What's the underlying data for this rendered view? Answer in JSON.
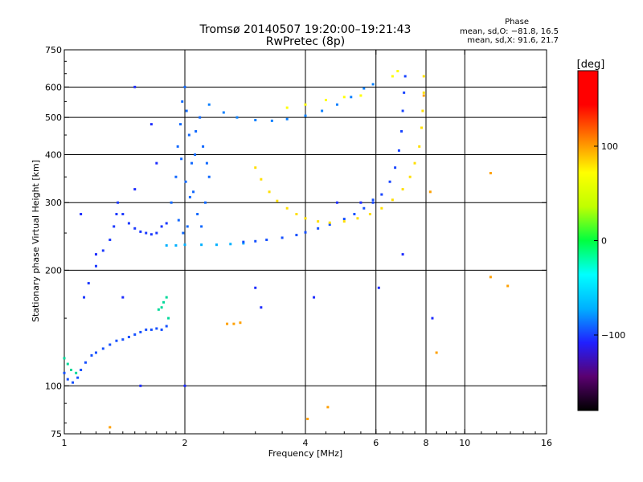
{
  "chart_data": {
    "type": "scatter",
    "title": "Tromsø 20140507 19:20:00–19:21:43",
    "subtitle": "RwPretec (8p)",
    "xlabel": "Frequency [MHz]",
    "ylabel": "Stationary phase Virtual Height [km]",
    "x_scale": "log2",
    "y_scale": "log",
    "xlim": [
      1,
      16
    ],
    "ylim": [
      75,
      750
    ],
    "x_ticks": [
      1,
      2,
      4,
      6,
      8,
      10,
      16
    ],
    "x_tick_labels": [
      "1",
      "2",
      "4",
      "6",
      "8",
      "10",
      "16"
    ],
    "x_grid": [
      2,
      4,
      6,
      8,
      10
    ],
    "y_ticks": [
      75,
      100,
      200,
      300,
      400,
      500,
      600,
      750
    ],
    "y_tick_labels": [
      "75",
      "100",
      "200",
      "300",
      "400",
      "500",
      "600",
      "750"
    ],
    "y_grid": [
      100,
      200,
      300,
      400,
      500,
      600
    ],
    "grid": true,
    "stats": {
      "heading": "Phase",
      "line_o": "mean, sd,O: −81.8, 16.5",
      "line_x": "mean, sd,X:  91.6, 21.7"
    },
    "colorbar": {
      "label": "[deg]",
      "range": [
        -180,
        180
      ],
      "ticks": [
        100,
        0,
        -100
      ],
      "tick_labels": [
        "100",
        "0",
        "−100"
      ],
      "colors": [
        "#000000",
        "#5a0070",
        "#2020ff",
        "#00b0ff",
        "#00ffff",
        "#00ff40",
        "#c0ff00",
        "#ffff00",
        "#ff8000",
        "#ff0000",
        "#ff0000"
      ]
    },
    "series": [
      {
        "trace": "E low",
        "phase": -80,
        "points": [
          [
            1.0,
            108
          ],
          [
            1.02,
            104
          ],
          [
            1.05,
            102
          ],
          [
            1.08,
            105
          ],
          [
            1.1,
            110
          ],
          [
            1.13,
            115
          ],
          [
            1.17,
            120
          ],
          [
            1.2,
            122
          ],
          [
            1.25,
            125
          ],
          [
            1.3,
            128
          ],
          [
            1.35,
            131
          ],
          [
            1.4,
            132
          ],
          [
            1.45,
            134
          ],
          [
            1.5,
            136
          ],
          [
            1.55,
            138
          ],
          [
            1.6,
            140
          ],
          [
            1.65,
            140
          ],
          [
            1.7,
            141
          ],
          [
            1.75,
            140
          ],
          [
            1.8,
            143
          ]
        ]
      },
      {
        "trace": "E low cyan",
        "phase": -10,
        "points": [
          [
            1.0,
            118
          ],
          [
            1.02,
            114
          ],
          [
            1.04,
            110
          ],
          [
            1.07,
            108
          ],
          [
            1.72,
            158
          ],
          [
            1.75,
            160
          ],
          [
            1.77,
            165
          ],
          [
            1.8,
            170
          ],
          [
            1.82,
            150
          ]
        ]
      },
      {
        "trace": "E rising",
        "phase": -90,
        "points": [
          [
            1.12,
            170
          ],
          [
            1.15,
            185
          ],
          [
            1.2,
            205
          ],
          [
            1.25,
            225
          ],
          [
            1.3,
            240
          ],
          [
            1.33,
            260
          ],
          [
            1.35,
            280
          ],
          [
            1.36,
            300
          ],
          [
            1.4,
            280
          ],
          [
            1.45,
            265
          ],
          [
            1.5,
            257
          ],
          [
            1.55,
            252
          ],
          [
            1.6,
            250
          ],
          [
            1.65,
            248
          ],
          [
            1.7,
            250
          ],
          [
            1.75,
            260
          ],
          [
            1.8,
            265
          ]
        ]
      },
      {
        "trace": "F1 base",
        "phase": -40,
        "points": [
          [
            1.8,
            232
          ],
          [
            1.9,
            232
          ],
          [
            2.0,
            233
          ],
          [
            2.2,
            233
          ],
          [
            2.4,
            233
          ],
          [
            2.6,
            234
          ],
          [
            2.8,
            235
          ]
        ]
      },
      {
        "trace": "F1 main",
        "phase": -80,
        "points": [
          [
            2.8,
            237
          ],
          [
            3.0,
            238
          ],
          [
            3.2,
            240
          ],
          [
            3.5,
            243
          ],
          [
            3.8,
            247
          ],
          [
            4.0,
            251
          ],
          [
            4.3,
            257
          ],
          [
            4.6,
            263
          ],
          [
            5.0,
            272
          ],
          [
            5.3,
            280
          ],
          [
            5.6,
            290
          ],
          [
            5.9,
            305
          ]
        ]
      },
      {
        "trace": "Spread F column",
        "phase": -70,
        "points": [
          [
            1.85,
            300
          ],
          [
            1.9,
            350
          ],
          [
            1.92,
            420
          ],
          [
            1.95,
            480
          ],
          [
            1.97,
            550
          ],
          [
            2.0,
            600
          ],
          [
            2.02,
            520
          ],
          [
            2.05,
            450
          ],
          [
            2.08,
            380
          ],
          [
            2.1,
            320
          ],
          [
            2.15,
            280
          ],
          [
            2.2,
            260
          ],
          [
            2.25,
            300
          ],
          [
            2.3,
            350
          ],
          [
            1.98,
            250
          ],
          [
            2.03,
            260
          ],
          [
            1.93,
            270
          ],
          [
            2.12,
            400
          ],
          [
            2.18,
            500
          ],
          [
            2.22,
            420
          ],
          [
            2.27,
            380
          ],
          [
            1.96,
            390
          ],
          [
            2.01,
            340
          ],
          [
            2.06,
            310
          ],
          [
            2.13,
            460
          ]
        ]
      },
      {
        "trace": "F2 O arc",
        "phase": -60,
        "points": [
          [
            2.3,
            540
          ],
          [
            2.5,
            515
          ],
          [
            2.7,
            500
          ],
          [
            3.0,
            492
          ],
          [
            3.3,
            490
          ],
          [
            3.6,
            495
          ],
          [
            4.0,
            505
          ],
          [
            4.4,
            520
          ],
          [
            4.8,
            540
          ],
          [
            5.2,
            565
          ],
          [
            5.6,
            595
          ],
          [
            5.9,
            610
          ]
        ]
      },
      {
        "trace": "F X arc",
        "phase": 110,
        "points": [
          [
            3.0,
            370
          ],
          [
            3.1,
            345
          ],
          [
            3.25,
            320
          ],
          [
            3.4,
            303
          ],
          [
            3.6,
            290
          ],
          [
            3.8,
            280
          ],
          [
            4.0,
            273
          ],
          [
            4.3,
            268
          ],
          [
            4.6,
            266
          ],
          [
            5.0,
            268
          ],
          [
            5.4,
            273
          ],
          [
            5.8,
            280
          ],
          [
            6.2,
            290
          ],
          [
            6.6,
            305
          ],
          [
            7.0,
            325
          ],
          [
            7.3,
            350
          ],
          [
            7.5,
            380
          ],
          [
            7.7,
            420
          ],
          [
            7.8,
            470
          ],
          [
            7.85,
            520
          ],
          [
            7.9,
            580
          ],
          [
            7.9,
            640
          ]
        ]
      },
      {
        "trace": "F O cusp",
        "phase": -85,
        "points": [
          [
            5.9,
            300
          ],
          [
            6.2,
            315
          ],
          [
            6.5,
            340
          ],
          [
            6.7,
            370
          ],
          [
            6.85,
            410
          ],
          [
            6.95,
            460
          ],
          [
            7.0,
            520
          ],
          [
            7.05,
            580
          ],
          [
            7.1,
            640
          ]
        ]
      },
      {
        "trace": "F2 X upper",
        "phase": 100,
        "points": [
          [
            3.6,
            530
          ],
          [
            4.0,
            540
          ],
          [
            4.5,
            555
          ],
          [
            5.0,
            565
          ],
          [
            5.5,
            570
          ],
          [
            6.6,
            640
          ],
          [
            6.8,
            660
          ]
        ]
      },
      {
        "trace": "Sporadic",
        "phase": 130,
        "points": [
          [
            2.55,
            145
          ],
          [
            2.65,
            145
          ],
          [
            2.75,
            146
          ],
          [
            4.55,
            88
          ],
          [
            4.05,
            82
          ],
          [
            8.5,
            122
          ],
          [
            11.6,
            192
          ],
          [
            12.8,
            182
          ],
          [
            1.3,
            78
          ],
          [
            11.6,
            358
          ],
          [
            8.2,
            320
          ],
          [
            7.9,
            570
          ]
        ]
      },
      {
        "trace": "Noise",
        "phase": -95,
        "points": [
          [
            1.5,
            600
          ],
          [
            1.65,
            480
          ],
          [
            1.7,
            380
          ],
          [
            1.5,
            325
          ],
          [
            1.4,
            170
          ],
          [
            1.55,
            100
          ],
          [
            2.0,
            100
          ],
          [
            3.0,
            180
          ],
          [
            4.2,
            170
          ],
          [
            3.1,
            160
          ],
          [
            6.1,
            180
          ],
          [
            5.5,
            300
          ],
          [
            7.0,
            220
          ],
          [
            8.3,
            150
          ],
          [
            4.8,
            300
          ],
          [
            1.2,
            220
          ],
          [
            1.1,
            280
          ]
        ]
      }
    ]
  }
}
